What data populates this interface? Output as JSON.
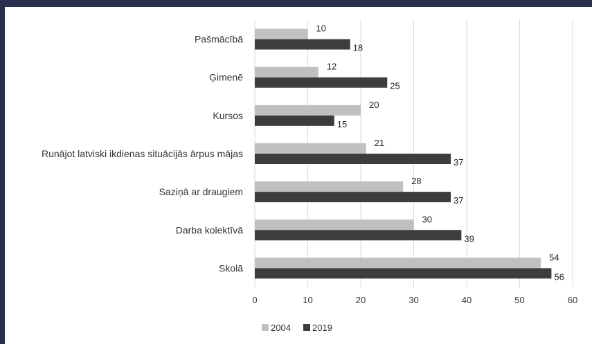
{
  "chart_data": {
    "type": "bar",
    "orientation": "horizontal",
    "categories": [
      "Pašmācībā",
      "Ģimenē",
      "Kursos",
      "Runājot latviski ikdienas situācijās ārpus mājas",
      "Saziņā ar draugiem",
      "Darba kolektīvā",
      "Skolā"
    ],
    "series": [
      {
        "name": "2004",
        "color": "#c0c0c0",
        "values": [
          10,
          12,
          20,
          21,
          28,
          30,
          54
        ]
      },
      {
        "name": "2019",
        "color": "#3d3d3d",
        "values": [
          18,
          25,
          15,
          37,
          37,
          39,
          56
        ]
      }
    ],
    "xlim": [
      0,
      60
    ],
    "xticks": [
      0,
      10,
      20,
      30,
      40,
      50,
      60
    ],
    "grid": true,
    "data_labels": true,
    "legend_position": "bottom"
  }
}
